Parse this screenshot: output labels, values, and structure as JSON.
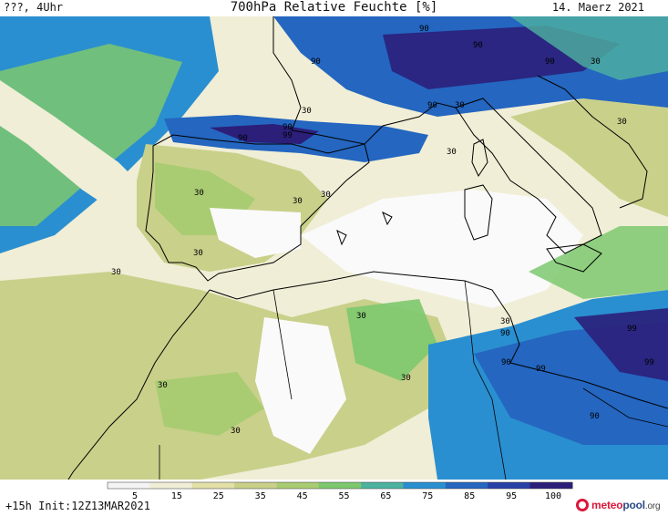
{
  "header": {
    "left": "???, 4Uhr",
    "title": "700hPa Relative Feuchte [%]",
    "date": "14. Maerz 2021"
  },
  "map": {
    "contour_labels": [
      "90",
      "90",
      "90",
      "90",
      "90",
      "90",
      "90",
      "90",
      "99",
      "30",
      "30",
      "30",
      "30",
      "30",
      "30",
      "30",
      "30",
      "30",
      "30",
      "30",
      "30",
      "30",
      "30",
      "30",
      "99",
      "99",
      "99",
      "90",
      "90"
    ],
    "colors": {
      "sea_blue": "#2a7ec6",
      "deep_purple": "#2b1f7a",
      "green": "#78c878",
      "olive": "#c9d08a",
      "cream": "#f2f0d8",
      "white": "#fafafa"
    }
  },
  "legend": {
    "ticks": [
      "5",
      "15",
      "25",
      "35",
      "45",
      "55",
      "65",
      "75",
      "85",
      "95",
      "100"
    ],
    "colors": [
      "#f4f4f4",
      "#f0eed6",
      "#e2dfa8",
      "#c9d08a",
      "#a9cc73",
      "#7dc86e",
      "#4db3a0",
      "#2a8fd0",
      "#2466c0",
      "#2741a6",
      "#2b1f7a"
    ]
  },
  "footer": {
    "run": "+15h Init:12Z13MAR2021",
    "logo_red": "meteo",
    "logo_blue": "pool",
    "logo_tld": ".org"
  }
}
